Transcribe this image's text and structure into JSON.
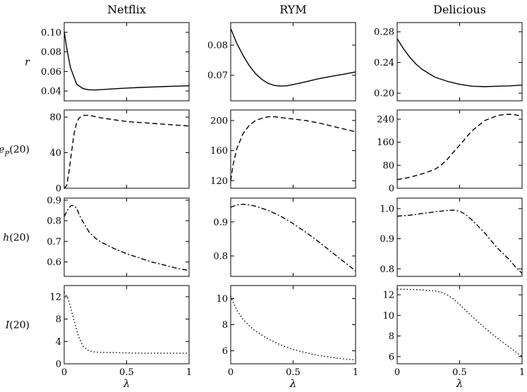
{
  "chart_data": {
    "type": "line",
    "xlabel": "λ",
    "columns": [
      "Netflix",
      "RYM",
      "Delicious"
    ],
    "rows": [
      {
        "label": "r",
        "style": "solid"
      },
      {
        "label": "e_P(20)",
        "style": "dashed"
      },
      {
        "label": "h(20)",
        "style": "dashdot"
      },
      {
        "label": "I(20)",
        "style": "dotted"
      }
    ],
    "xticks": [
      {
        "value": 0,
        "label": "0"
      },
      {
        "value": 0.5,
        "label": "0.5"
      },
      {
        "value": 1,
        "label": "1"
      }
    ],
    "xlim": [
      0,
      1
    ],
    "panels": [
      {
        "row": 0,
        "col": 0,
        "ylim": [
          0.03,
          0.11
        ],
        "yticks": [
          {
            "value": 0.04,
            "label": "0.04"
          },
          {
            "value": 0.06,
            "label": "0.06"
          },
          {
            "value": 0.08,
            "label": "0.08"
          },
          {
            "value": 0.1,
            "label": "0.10"
          }
        ],
        "x": [
          0,
          0.02,
          0.05,
          0.1,
          0.15,
          0.2,
          0.25,
          0.3,
          0.4,
          0.5,
          0.6,
          0.7,
          0.8,
          0.9,
          1.0
        ],
        "y": [
          0.101,
          0.084,
          0.064,
          0.047,
          0.0425,
          0.0412,
          0.0411,
          0.0415,
          0.0423,
          0.043,
          0.0436,
          0.0441,
          0.0446,
          0.045,
          0.0454
        ]
      },
      {
        "row": 0,
        "col": 1,
        "ylim": [
          0.0615,
          0.0875
        ],
        "yticks": [
          {
            "value": 0.07,
            "label": "0.07"
          },
          {
            "value": 0.08,
            "label": "0.08"
          }
        ],
        "x": [
          0,
          0.05,
          0.1,
          0.15,
          0.2,
          0.25,
          0.3,
          0.35,
          0.4,
          0.45,
          0.5,
          0.6,
          0.7,
          0.8,
          0.9,
          1.0
        ],
        "y": [
          0.0855,
          0.0805,
          0.0765,
          0.0731,
          0.0705,
          0.0686,
          0.0673,
          0.0666,
          0.0664,
          0.0665,
          0.0669,
          0.0678,
          0.0688,
          0.0696,
          0.0703,
          0.0711
        ]
      },
      {
        "row": 0,
        "col": 2,
        "ylim": [
          0.19,
          0.292
        ],
        "yticks": [
          {
            "value": 0.2,
            "label": "0.20"
          },
          {
            "value": 0.24,
            "label": "0.24"
          },
          {
            "value": 0.28,
            "label": "0.28"
          }
        ],
        "x": [
          0,
          0.05,
          0.1,
          0.15,
          0.2,
          0.3,
          0.4,
          0.5,
          0.6,
          0.7,
          0.8,
          0.9,
          1.0
        ],
        "y": [
          0.271,
          0.258,
          0.247,
          0.238,
          0.231,
          0.221,
          0.2155,
          0.2115,
          0.209,
          0.2085,
          0.209,
          0.2095,
          0.2105
        ]
      },
      {
        "row": 1,
        "col": 0,
        "ylim": [
          0,
          88
        ],
        "yticks": [
          {
            "value": 0,
            "label": "0"
          },
          {
            "value": 40,
            "label": "40"
          },
          {
            "value": 80,
            "label": "80"
          }
        ],
        "x": [
          0,
          0.02,
          0.04,
          0.06,
          0.08,
          0.1,
          0.12,
          0.15,
          0.2,
          0.3,
          0.4,
          0.5,
          0.6,
          0.7,
          0.8,
          0.9,
          1.0
        ],
        "y": [
          0,
          3,
          20,
          42,
          62,
          74,
          79,
          82,
          82,
          79,
          77,
          75,
          74,
          73,
          72,
          71,
          70
        ]
      },
      {
        "row": 1,
        "col": 1,
        "ylim": [
          110,
          214
        ],
        "yticks": [
          {
            "value": 120,
            "label": "120"
          },
          {
            "value": 160,
            "label": "160"
          },
          {
            "value": 200,
            "label": "200"
          }
        ],
        "x": [
          0,
          0.02,
          0.05,
          0.1,
          0.15,
          0.2,
          0.25,
          0.3,
          0.35,
          0.4,
          0.5,
          0.6,
          0.7,
          0.8,
          0.9,
          1.0
        ],
        "y": [
          120,
          142,
          163,
          183,
          194,
          200,
          203,
          205,
          205,
          204,
          202,
          200,
          197,
          193,
          189,
          185
        ]
      },
      {
        "row": 1,
        "col": 2,
        "ylim": [
          0,
          272
        ],
        "yticks": [
          {
            "value": 0,
            "label": "0"
          },
          {
            "value": 80,
            "label": "80"
          },
          {
            "value": 160,
            "label": "160"
          },
          {
            "value": 240,
            "label": "240"
          }
        ],
        "x": [
          0,
          0.1,
          0.2,
          0.3,
          0.35,
          0.4,
          0.5,
          0.6,
          0.7,
          0.8,
          0.85,
          0.9,
          0.95,
          1.0
        ],
        "y": [
          30,
          38,
          50,
          65,
          80,
          100,
          150,
          200,
          235,
          252,
          256,
          257,
          255,
          250
        ]
      },
      {
        "row": 2,
        "col": 0,
        "ylim": [
          0.53,
          0.91
        ],
        "yticks": [
          {
            "value": 0.6,
            "label": "0.6"
          },
          {
            "value": 0.7,
            "label": "0.7"
          },
          {
            "value": 0.8,
            "label": "0.8"
          },
          {
            "value": 0.9,
            "label": "0.9"
          }
        ],
        "x": [
          0,
          0.02,
          0.04,
          0.06,
          0.08,
          0.1,
          0.12,
          0.15,
          0.2,
          0.25,
          0.3,
          0.4,
          0.5,
          0.6,
          0.7,
          0.8,
          0.9,
          1.0
        ],
        "y": [
          0.82,
          0.845,
          0.865,
          0.875,
          0.872,
          0.86,
          0.83,
          0.795,
          0.745,
          0.715,
          0.695,
          0.665,
          0.64,
          0.62,
          0.6,
          0.585,
          0.57,
          0.558
        ]
      },
      {
        "row": 2,
        "col": 1,
        "ylim": [
          0.74,
          0.97
        ],
        "yticks": [
          {
            "value": 0.8,
            "label": "0.8"
          },
          {
            "value": 0.9,
            "label": "0.9"
          }
        ],
        "x": [
          0,
          0.05,
          0.1,
          0.15,
          0.2,
          0.3,
          0.4,
          0.5,
          0.6,
          0.7,
          0.8,
          0.9,
          1.0
        ],
        "y": [
          0.943,
          0.95,
          0.952,
          0.95,
          0.946,
          0.934,
          0.917,
          0.895,
          0.87,
          0.843,
          0.814,
          0.785,
          0.756
        ]
      },
      {
        "row": 2,
        "col": 2,
        "ylim": [
          0.775,
          1.035
        ],
        "yticks": [
          {
            "value": 0.8,
            "label": "0.8"
          },
          {
            "value": 0.9,
            "label": "0.9"
          },
          {
            "value": 1.0,
            "label": "1.0"
          }
        ],
        "x": [
          0,
          0.1,
          0.2,
          0.3,
          0.4,
          0.45,
          0.5,
          0.55,
          0.6,
          0.7,
          0.8,
          0.9,
          0.95,
          1.0
        ],
        "y": [
          0.975,
          0.978,
          0.984,
          0.989,
          0.994,
          0.995,
          0.992,
          0.98,
          0.962,
          0.92,
          0.87,
          0.83,
          0.805,
          0.785
        ]
      },
      {
        "row": 3,
        "col": 0,
        "ylim": [
          0,
          14
        ],
        "yticks": [
          {
            "value": 0,
            "label": "0"
          },
          {
            "value": 4,
            "label": "4"
          },
          {
            "value": 8,
            "label": "8"
          },
          {
            "value": 12,
            "label": "12"
          }
        ],
        "x": [
          0,
          0.03,
          0.05,
          0.07,
          0.1,
          0.12,
          0.15,
          0.18,
          0.2,
          0.25,
          0.3,
          0.4,
          0.5,
          0.6,
          0.7,
          0.8,
          0.9,
          1.0
        ],
        "y": [
          12.8,
          11.7,
          10.2,
          8.5,
          6.0,
          4.6,
          3.2,
          2.6,
          2.3,
          2.1,
          2.05,
          2.0,
          1.95,
          1.9,
          1.9,
          1.9,
          1.9,
          1.9
        ]
      },
      {
        "row": 3,
        "col": 1,
        "ylim": [
          5,
          11
        ],
        "yticks": [
          {
            "value": 6,
            "label": "6"
          },
          {
            "value": 8,
            "label": "8"
          },
          {
            "value": 10,
            "label": "10"
          }
        ],
        "x": [
          0,
          0.02,
          0.05,
          0.1,
          0.15,
          0.2,
          0.3,
          0.4,
          0.5,
          0.6,
          0.7,
          0.8,
          0.9,
          1.0
        ],
        "y": [
          10.2,
          9.7,
          9.1,
          8.4,
          7.9,
          7.5,
          6.9,
          6.45,
          6.1,
          5.85,
          5.65,
          5.5,
          5.38,
          5.3
        ]
      },
      {
        "row": 3,
        "col": 2,
        "ylim": [
          5.3,
          12.9
        ],
        "yticks": [
          {
            "value": 6,
            "label": "6"
          },
          {
            "value": 8,
            "label": "8"
          },
          {
            "value": 10,
            "label": "10"
          },
          {
            "value": 12,
            "label": "12"
          }
        ],
        "x": [
          0,
          0.1,
          0.2,
          0.3,
          0.35,
          0.4,
          0.45,
          0.5,
          0.6,
          0.7,
          0.8,
          0.9,
          1.0
        ],
        "y": [
          12.55,
          12.52,
          12.48,
          12.38,
          12.25,
          12.0,
          11.6,
          11.05,
          9.9,
          8.8,
          7.8,
          6.9,
          6.0
        ]
      }
    ]
  }
}
